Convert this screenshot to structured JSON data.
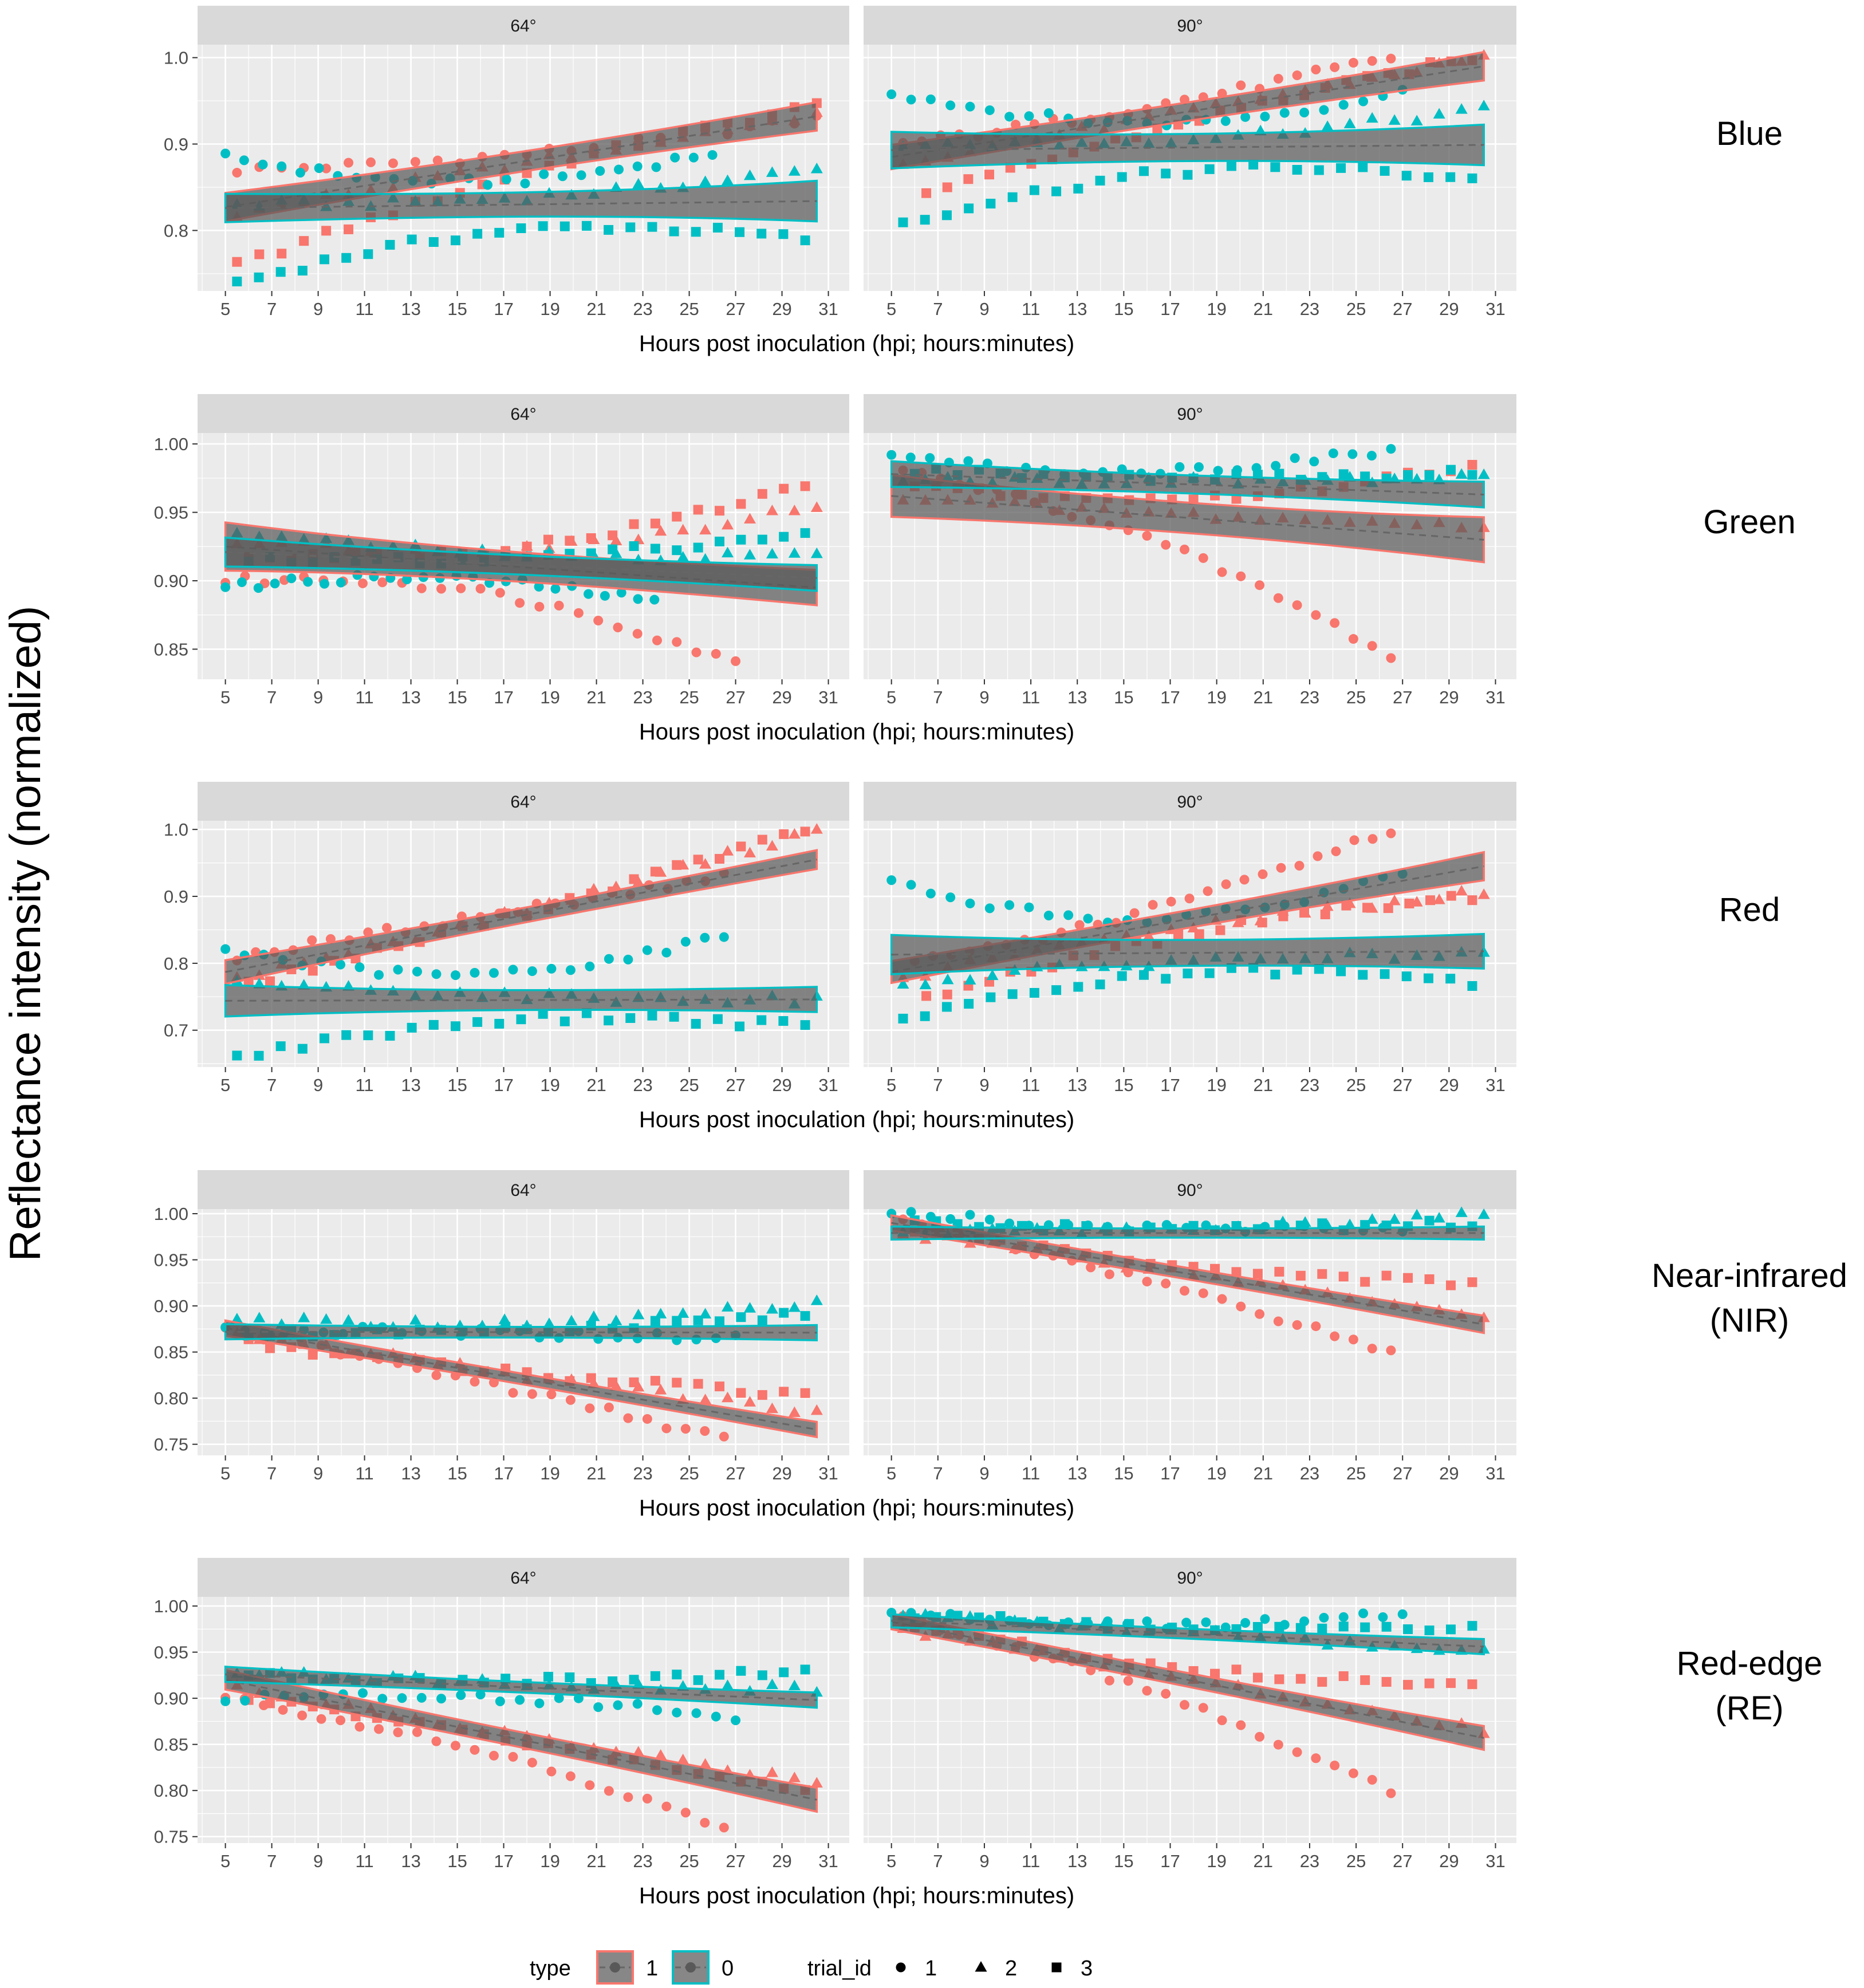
{
  "y_axis_title": "Reflectance intensity (normalized)",
  "x_axis_title": "Hours post inoculation (hpi; hours:minutes)",
  "colors": {
    "type_1": "#F8766D",
    "type_0": "#00BFC4",
    "ribbon_fill": "#595959",
    "panel_bg": "#EBEBEB",
    "strip_bg": "#D9D9D9",
    "grid": "#FFFFFF",
    "trend_line": "#666666"
  },
  "legend": {
    "type_title": "type",
    "type_items": [
      {
        "label": "1",
        "color": "#F8766D"
      },
      {
        "label": "0",
        "color": "#00BFC4"
      }
    ],
    "trial_title": "trial_id",
    "trial_items": [
      {
        "label": "1",
        "shape": "circle"
      },
      {
        "label": "2",
        "shape": "triangle"
      },
      {
        "label": "3",
        "shape": "square"
      }
    ]
  },
  "chart_data": {
    "type": "scatter",
    "x_ticks": [
      5,
      7,
      9,
      11,
      13,
      15,
      17,
      19,
      21,
      23,
      25,
      27,
      29,
      31
    ],
    "xlim": [
      3.8,
      31.9
    ],
    "facets": [
      "64°",
      "90°"
    ],
    "rows": [
      {
        "label": [
          "Blue"
        ],
        "ylim": [
          0.73,
          1.015
        ],
        "y_ticks": [
          "0.8",
          "0.9",
          "1.0"
        ],
        "y_tick_values": [
          0.8,
          0.9,
          1.0
        ],
        "panels": [
          {
            "facet": "64°",
            "fits": [
              {
                "type": "1",
                "start": 0.827,
                "end": 0.932,
                "halfwidth_start": 0.014,
                "halfwidth_end": 0.014
              },
              {
                "type": "0",
                "start": 0.826,
                "end": 0.834,
                "halfwidth_start": 0.014,
                "halfwidth_end": 0.02
              }
            ],
            "points": {
              "type_1": {
                "t1": [
                  5.5,
                  0.87,
                  30.5,
                  0.93
                ],
                "t2": [
                  5.5,
                  0.82,
                  30.5,
                  0.935
                ],
                "t3": [
                  5.5,
                  0.76,
                  30.5,
                  0.945
                ]
              },
              "type_0": {
                "t1": [
                  5.0,
                  0.885,
                  26.0,
                  0.89
                ],
                "t2": [
                  5.5,
                  0.83,
                  30.5,
                  0.87
                ],
                "t3": [
                  5.5,
                  0.74,
                  30.0,
                  0.79
                ]
              }
            }
          },
          {
            "facet": "90°",
            "fits": [
              {
                "type": "1",
                "start": 0.885,
                "end": 0.99,
                "halfwidth_start": 0.012,
                "halfwidth_end": 0.014
              },
              {
                "type": "0",
                "start": 0.893,
                "end": 0.899,
                "halfwidth_start": 0.018,
                "halfwidth_end": 0.02
              }
            ],
            "points": {
              "type_1": {
                "t1": [
                  5.5,
                  0.9,
                  26.5,
                  1.0
                ],
                "t2": [
                  5.5,
                  0.88,
                  30.5,
                  1.0
                ],
                "t3": [
                  6.5,
                  0.84,
                  30.0,
                  1.0
                ]
              },
              "type_0": {
                "t1": [
                  5.0,
                  0.96,
                  27.0,
                  0.96
                ],
                "t2": [
                  5.5,
                  0.9,
                  30.5,
                  0.94
                ],
                "t3": [
                  5.5,
                  0.81,
                  30.0,
                  0.86
                ]
              }
            }
          }
        ]
      },
      {
        "label": [
          "Green"
        ],
        "ylim": [
          0.828,
          1.008
        ],
        "y_ticks": [
          "0.85",
          "0.90",
          "0.95",
          "1.00"
        ],
        "y_tick_values": [
          0.85,
          0.9,
          0.95,
          1.0
        ],
        "panels": [
          {
            "facet": "64°",
            "fits": [
              {
                "type": "1",
                "start": 0.925,
                "end": 0.895,
                "halfwidth_start": 0.015,
                "halfwidth_end": 0.011
              },
              {
                "type": "0",
                "start": 0.921,
                "end": 0.902,
                "halfwidth_start": 0.009,
                "halfwidth_end": 0.008
              }
            ],
            "points": {
              "type_1": {
                "t1": [
                  5.0,
                  0.9,
                  27.0,
                  0.84
                ],
                "t2": [
                  5.5,
                  0.93,
                  30.5,
                  0.955
                ],
                "t3": [
                  6.0,
                  0.92,
                  30.0,
                  0.97
                ]
              },
              "type_0": {
                "t1": [
                  5.0,
                  0.895,
                  23.5,
                  0.885
                ],
                "t2": [
                  5.5,
                  0.935,
                  30.5,
                  0.92
                ],
                "t3": [
                  6.0,
                  0.915,
                  30.0,
                  0.935
                ]
              }
            }
          },
          {
            "facet": "90°",
            "fits": [
              {
                "type": "1",
                "start": 0.962,
                "end": 0.93,
                "halfwidth_start": 0.013,
                "halfwidth_end": 0.014
              },
              {
                "type": "0",
                "start": 0.978,
                "end": 0.963,
                "halfwidth_start": 0.008,
                "halfwidth_end": 0.008
              }
            ],
            "points": {
              "type_1": {
                "t1": [
                  5.5,
                  0.98,
                  26.5,
                  0.845
                ],
                "t2": [
                  5.5,
                  0.96,
                  30.5,
                  0.94
                ],
                "t3": [
                  6.0,
                  0.97,
                  30.0,
                  0.985
                ]
              },
              "type_0": {
                "t1": [
                  5.0,
                  0.99,
                  26.5,
                  0.995
                ],
                "t2": [
                  5.5,
                  0.975,
                  30.5,
                  0.975
                ],
                "t3": [
                  6.0,
                  0.98,
                  30.0,
                  0.98
                ]
              }
            }
          }
        ]
      },
      {
        "label": [
          "Red"
        ],
        "ylim": [
          0.645,
          1.013
        ],
        "y_ticks": [
          "0.7",
          "0.8",
          "0.9",
          "1.0"
        ],
        "y_tick_values": [
          0.7,
          0.8,
          0.9,
          1.0
        ],
        "panels": [
          {
            "facet": "64°",
            "fits": [
              {
                "type": "1",
                "start": 0.787,
                "end": 0.955,
                "halfwidth_start": 0.015,
                "halfwidth_end": 0.012
              },
              {
                "type": "0",
                "start": 0.744,
                "end": 0.746,
                "halfwidth_start": 0.02,
                "halfwidth_end": 0.016
              }
            ],
            "points": {
              "type_1": {
                "t1": [
                  5.5,
                  0.81,
                  26.5,
                  0.93
                ],
                "t2": [
                  5.5,
                  0.78,
                  30.5,
                  1.0
                ],
                "t3": [
                  6.0,
                  0.77,
                  30.0,
                  1.0
                ]
              },
              "type_0": {
                "t1": [
                  5.0,
                  0.82,
                  26.5,
                  0.84
                ],
                "t2": [
                  5.5,
                  0.77,
                  30.5,
                  0.745
                ],
                "t3": [
                  5.5,
                  0.66,
                  30.0,
                  0.705
                ]
              }
            }
          },
          {
            "facet": "90°",
            "fits": [
              {
                "type": "1",
                "start": 0.787,
                "end": 0.945,
                "halfwidth_start": 0.014,
                "halfwidth_end": 0.018
              },
              {
                "type": "0",
                "start": 0.813,
                "end": 0.818,
                "halfwidth_start": 0.025,
                "halfwidth_end": 0.022
              }
            ],
            "points": {
              "type_1": {
                "t1": [
                  6.0,
                  0.8,
                  26.5,
                  1.0
                ],
                "t2": [
                  5.5,
                  0.78,
                  30.5,
                  0.905
                ],
                "t3": [
                  6.5,
                  0.75,
                  30.0,
                  0.9
                ]
              },
              "type_0": {
                "t1": [
                  5.0,
                  0.92,
                  27.0,
                  0.935
                ],
                "t2": [
                  5.5,
                  0.77,
                  30.5,
                  0.81
                ],
                "t3": [
                  5.5,
                  0.72,
                  30.0,
                  0.77
                ]
              }
            }
          }
        ]
      },
      {
        "label": [
          "Near-infrared",
          "(NIR)"
        ],
        "ylim": [
          0.738,
          1.005
        ],
        "y_ticks": [
          "0.75",
          "0.80",
          "0.85",
          "0.90",
          "0.95",
          "1.00"
        ],
        "y_tick_values": [
          0.75,
          0.8,
          0.85,
          0.9,
          0.95,
          1.0
        ],
        "panels": [
          {
            "facet": "64°",
            "fits": [
              {
                "type": "1",
                "start": 0.876,
                "end": 0.766,
                "halfwidth_start": 0.007,
                "halfwidth_end": 0.007
              },
              {
                "type": "0",
                "start": 0.872,
                "end": 0.871,
                "halfwidth_start": 0.007,
                "halfwidth_end": 0.007
              }
            ],
            "points": {
              "type_1": {
                "t1": [
                  5.0,
                  0.875,
                  26.5,
                  0.757
                ],
                "t2": [
                  5.5,
                  0.87,
                  30.5,
                  0.785
                ],
                "t3": [
                  6.0,
                  0.86,
                  30.0,
                  0.805
                ]
              },
              "type_0": {
                "t1": [
                  5.0,
                  0.875,
                  27.0,
                  0.865
                ],
                "t2": [
                  5.5,
                  0.885,
                  30.5,
                  0.905
                ],
                "t3": [
                  6.0,
                  0.87,
                  30.0,
                  0.89
                ]
              }
            }
          },
          {
            "facet": "90°",
            "fits": [
              {
                "type": "1",
                "start": 0.99,
                "end": 0.88,
                "halfwidth_start": 0.007,
                "halfwidth_end": 0.008
              },
              {
                "type": "0",
                "start": 0.979,
                "end": 0.979,
                "halfwidth_start": 0.006,
                "halfwidth_end": 0.006
              }
            ],
            "points": {
              "type_1": {
                "t1": [
                  5.5,
                  0.99,
                  26.5,
                  0.85
                ],
                "t2": [
                  5.5,
                  0.98,
                  30.5,
                  0.89
                ],
                "t3": [
                  6.0,
                  0.985,
                  30.0,
                  0.925
                ]
              },
              "type_0": {
                "t1": [
                  5.0,
                  1.0,
                  27.0,
                  0.985
                ],
                "t2": [
                  5.5,
                  0.98,
                  30.5,
                  1.0
                ],
                "t3": [
                  6.0,
                  0.99,
                  30.0,
                  0.99
                ]
              }
            }
          }
        ]
      },
      {
        "label": [
          "Red-edge",
          "(RE)"
        ],
        "ylim": [
          0.743,
          1.01
        ],
        "y_ticks": [
          "0.75",
          "0.80",
          "0.85",
          "0.90",
          "0.95",
          "1.00"
        ],
        "y_tick_values": [
          0.75,
          0.8,
          0.85,
          0.9,
          0.95,
          1.0
        ],
        "panels": [
          {
            "facet": "64°",
            "fits": [
              {
                "type": "1",
                "start": 0.92,
                "end": 0.79,
                "halfwidth_start": 0.009,
                "halfwidth_end": 0.011
              },
              {
                "type": "0",
                "start": 0.926,
                "end": 0.898,
                "halfwidth_start": 0.007,
                "halfwidth_end": 0.007
              }
            ],
            "points": {
              "type_1": {
                "t1": [
                  5.0,
                  0.9,
                  26.5,
                  0.76
                ],
                "t2": [
                  5.5,
                  0.91,
                  30.5,
                  0.81
                ],
                "t3": [
                  6.0,
                  0.9,
                  30.0,
                  0.8
                ]
              },
              "type_0": {
                "t1": [
                  5.0,
                  0.9,
                  27.0,
                  0.88
                ],
                "t2": [
                  5.5,
                  0.93,
                  30.5,
                  0.91
                ],
                "t3": [
                  6.0,
                  0.925,
                  30.0,
                  0.93
                ]
              }
            }
          },
          {
            "facet": "90°",
            "fits": [
              {
                "type": "1",
                "start": 0.983,
                "end": 0.857,
                "halfwidth_start": 0.007,
                "halfwidth_end": 0.011
              },
              {
                "type": "0",
                "start": 0.984,
                "end": 0.956,
                "halfwidth_start": 0.006,
                "halfwidth_end": 0.007
              }
            ],
            "points": {
              "type_1": {
                "t1": [
                  5.5,
                  0.99,
                  26.5,
                  0.8
                ],
                "t2": [
                  5.5,
                  0.975,
                  30.5,
                  0.865
                ],
                "t3": [
                  6.0,
                  0.98,
                  30.0,
                  0.915
                ]
              },
              "type_0": {
                "t1": [
                  5.0,
                  0.995,
                  27.0,
                  0.99
                ],
                "t2": [
                  5.5,
                  0.99,
                  30.5,
                  0.95
                ],
                "t3": [
                  6.0,
                  0.99,
                  30.0,
                  0.975
                ]
              }
            }
          }
        ]
      }
    ]
  }
}
